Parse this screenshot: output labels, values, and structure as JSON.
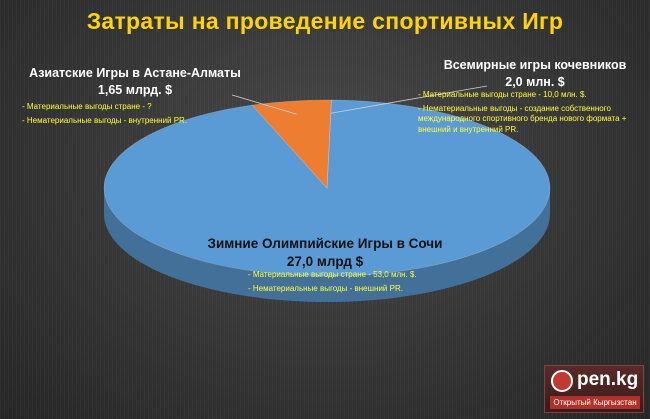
{
  "chart_data": {
    "type": "pie",
    "title": "Затраты на проведение спортивных Игр",
    "slices": [
      {
        "name": "Зимние Олимпийские Игры в Сочи",
        "value_label": "27,0 млрд $",
        "value": 27.0,
        "color": "#5b9bd5",
        "notes": [
          "- Материальные выгоды стране - 53,0 млн. $.",
          "- Нематериальные выгоды - внешний PR."
        ]
      },
      {
        "name": "Азиатские Игры в Астане-Алматы",
        "value_label": "1,65 млрд. $",
        "value": 1.65,
        "color": "#ed7d31",
        "notes": [
          "- Материальные выгоды стране - ?",
          "- Нематериальные выгоды - внутренний PR."
        ]
      },
      {
        "name": "Всемирные игры кочевников",
        "value_label": "2,0 млн. $",
        "value": 0.002,
        "color": "#a5a5a5",
        "notes": [
          "- Материальные выгоды стране - 10,0 млн. $.",
          "- Нематериальные выгоды - создание собственного международного спортивного бренда нового формата + внешний и внутренний PR."
        ]
      }
    ]
  },
  "logo": {
    "text": "pen.kg",
    "subtitle": "Открытый Кыргызстан"
  }
}
